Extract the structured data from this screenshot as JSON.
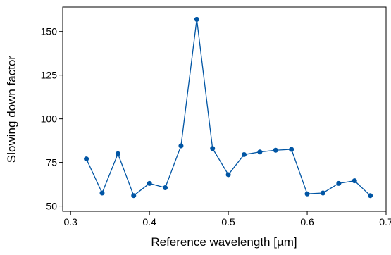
{
  "chart_data": {
    "type": "line",
    "title": "",
    "xlabel": "Reference wavelength [µm]",
    "ylabel": "Slowing down factor",
    "xlim": [
      0.29,
      0.7
    ],
    "ylim": [
      47,
      164
    ],
    "xticks": [
      0.3,
      0.4,
      0.5,
      0.6,
      0.7
    ],
    "xtick_labels": [
      "0.3",
      "0.4",
      "0.5",
      "0.6",
      "0.7"
    ],
    "yticks": [
      50,
      75,
      100,
      125,
      150
    ],
    "ytick_labels": [
      "50",
      "75",
      "100",
      "125",
      "150"
    ],
    "grid": false,
    "legend": "none",
    "series": [
      {
        "color": "#0055a4",
        "marker": "circle",
        "x": [
          0.32,
          0.34,
          0.36,
          0.38,
          0.4,
          0.42,
          0.44,
          0.46,
          0.48,
          0.5,
          0.52,
          0.54,
          0.56,
          0.58,
          0.6,
          0.62,
          0.64,
          0.66,
          0.68
        ],
        "y": [
          77,
          57.5,
          80,
          56,
          63,
          60.5,
          84.5,
          157,
          83,
          68,
          79.5,
          81,
          82,
          82.5,
          57,
          57.5,
          63,
          64.5,
          56
        ]
      }
    ]
  }
}
